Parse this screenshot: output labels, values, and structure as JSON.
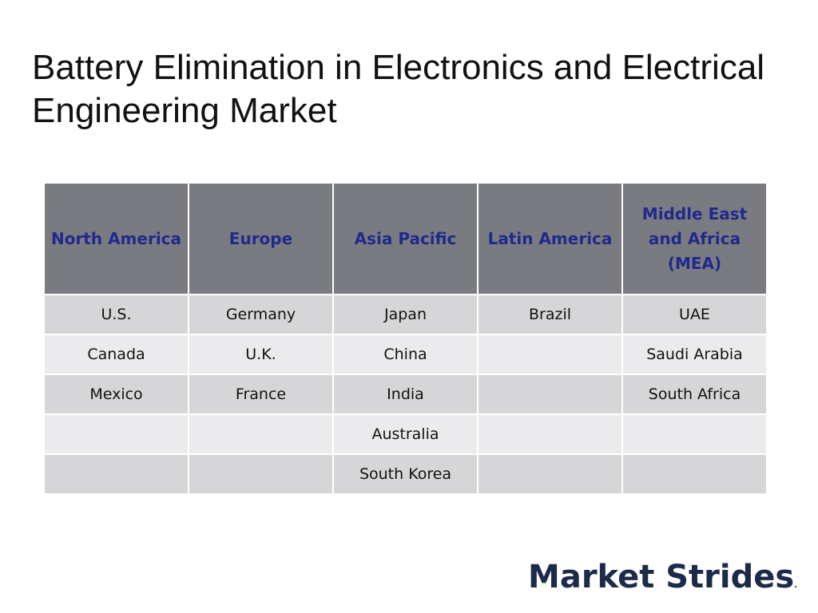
{
  "slide": {
    "title": "Battery Elimination in Electronics and Electrical Engineering Market"
  },
  "table": {
    "headers": [
      "North America",
      "Europe",
      "Asia Pacific",
      "Latin America",
      "Middle East and Africa (MEA)"
    ],
    "rows": [
      [
        "U.S.",
        "Germany",
        "Japan",
        "Brazil",
        "UAE"
      ],
      [
        "Canada",
        "U.K.",
        "China",
        "",
        "Saudi Arabia"
      ],
      [
        "Mexico",
        "France",
        "India",
        "",
        "South Africa"
      ],
      [
        "",
        "",
        "Australia",
        "",
        ""
      ],
      [
        "",
        "",
        "South Korea",
        "",
        ""
      ]
    ]
  },
  "logo": {
    "text": "Market Strides",
    "mark": "."
  },
  "colors": {
    "header_bg": "#7a7b80",
    "header_text": "#1f2a8c",
    "row_dark": "#d6d6d8",
    "row_light": "#ebebed",
    "logo": "#1c2b4a"
  }
}
